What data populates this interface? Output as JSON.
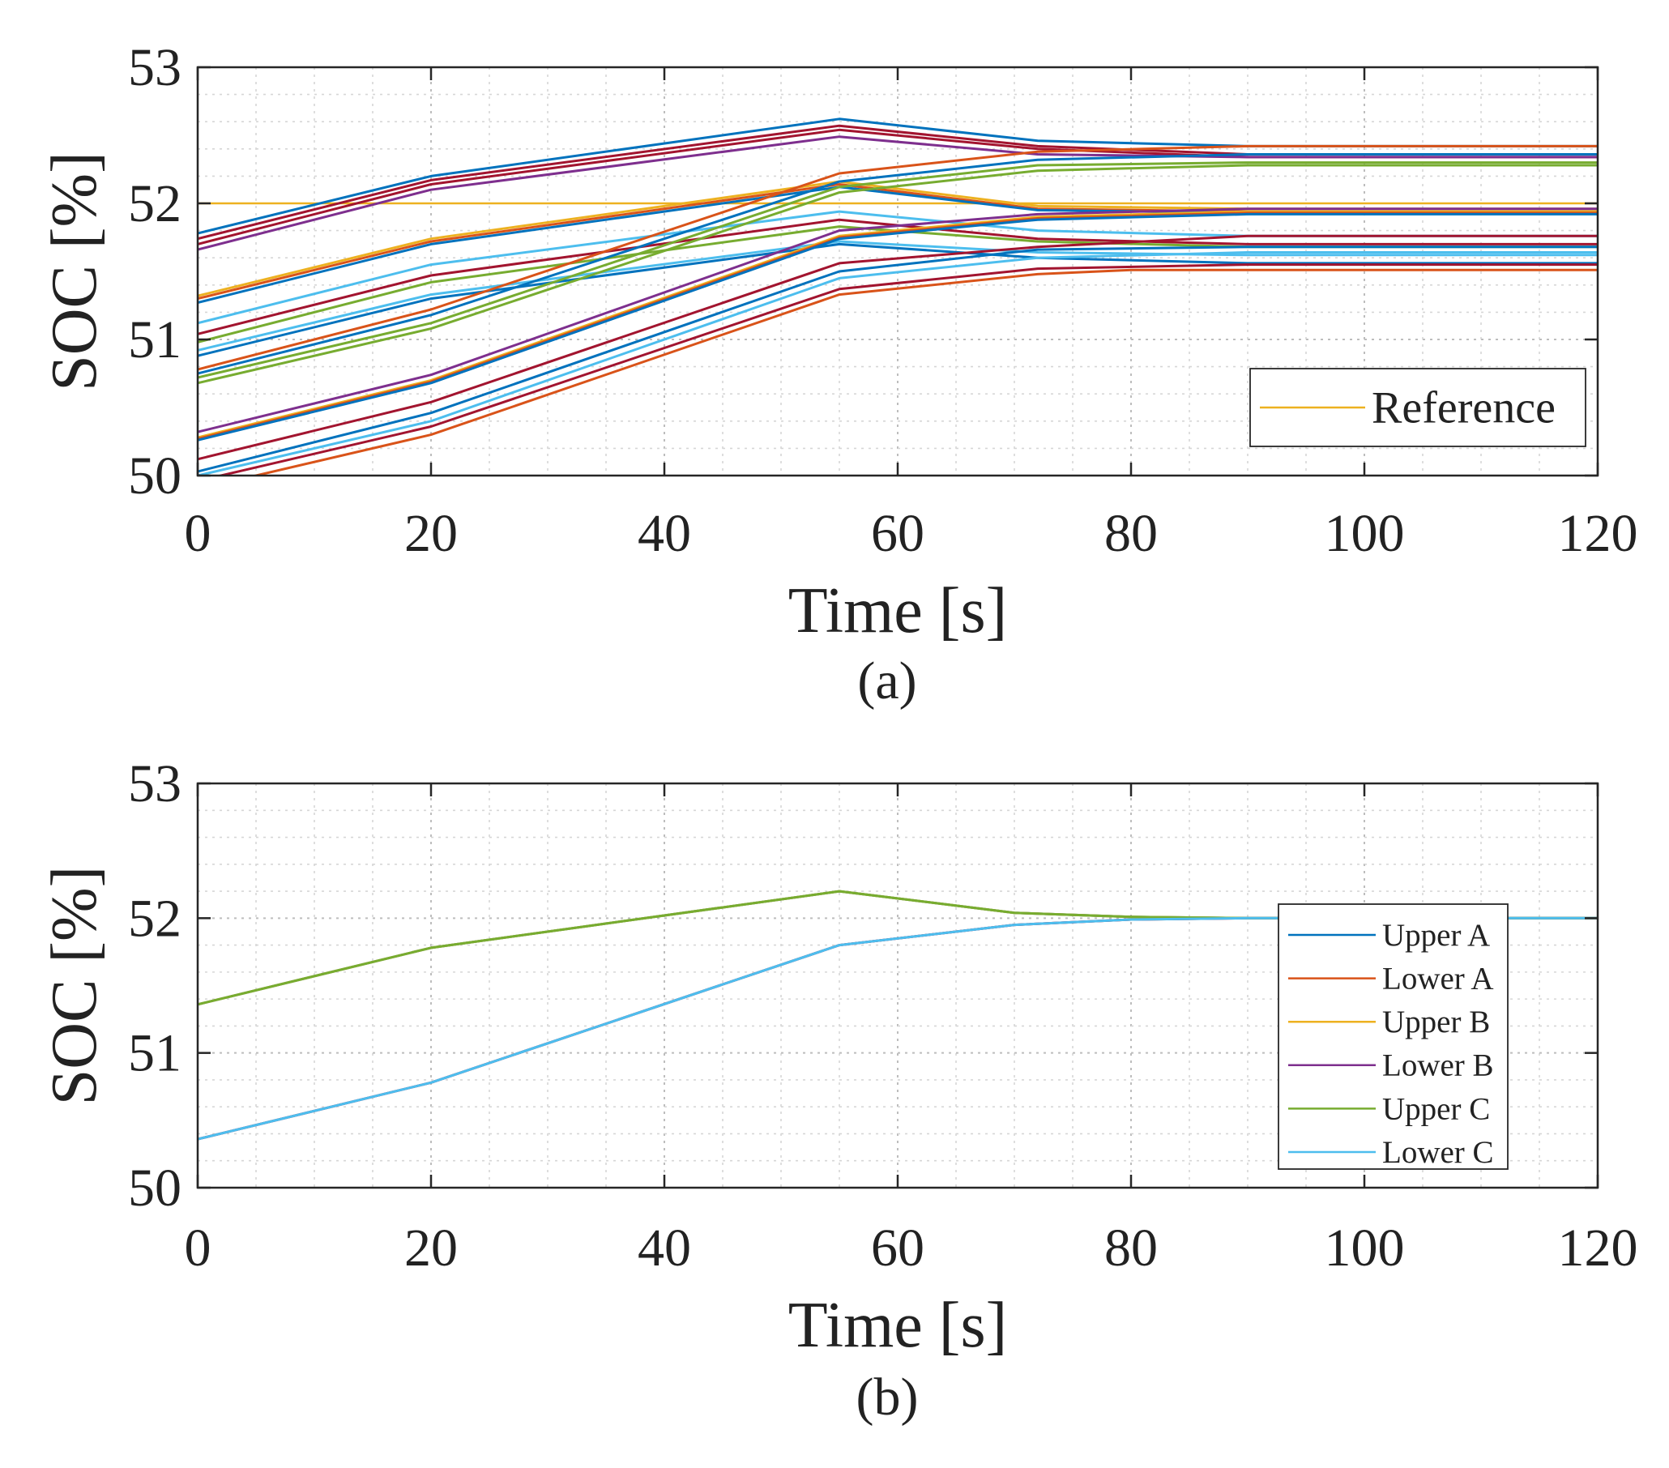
{
  "chart_data": [
    {
      "type": "line",
      "caption": "(a)",
      "title": "",
      "xlabel": "Time [s]",
      "ylabel": "SOC [%]",
      "xlim": [
        0,
        120
      ],
      "ylim": [
        50,
        53
      ],
      "xticks": [
        "0",
        "20",
        "40",
        "60",
        "80",
        "100",
        "120"
      ],
      "yticks": [
        "50",
        "51",
        "52",
        "53"
      ],
      "grid": true,
      "legend_position": "bottom-right",
      "legend": [
        "Reference"
      ],
      "series": [
        {
          "name": "Reference",
          "color": "#EDB120",
          "width": 2.5,
          "points": [
            [
              0,
              52.0
            ],
            [
              120,
              52.0
            ]
          ]
        },
        {
          "name": "",
          "color": "#0072BD",
          "points": [
            [
              0,
              51.78
            ],
            [
              20,
              52.2
            ],
            [
              55,
              52.62
            ],
            [
              72,
              52.46
            ],
            [
              90,
              52.42
            ],
            [
              120,
              52.42
            ]
          ]
        },
        {
          "name": "",
          "color": "#A2142F",
          "points": [
            [
              0,
              51.74
            ],
            [
              20,
              52.17
            ],
            [
              55,
              52.57
            ],
            [
              72,
              52.42
            ],
            [
              90,
              52.36
            ],
            [
              120,
              52.36
            ]
          ]
        },
        {
          "name": "",
          "color": "#A2142F",
          "points": [
            [
              0,
              51.7
            ],
            [
              20,
              52.14
            ],
            [
              55,
              52.54
            ],
            [
              72,
              52.4
            ],
            [
              90,
              52.34
            ],
            [
              120,
              52.34
            ]
          ]
        },
        {
          "name": "",
          "color": "#7E2F8E",
          "points": [
            [
              0,
              51.66
            ],
            [
              20,
              52.1
            ],
            [
              55,
              52.49
            ],
            [
              72,
              52.36
            ],
            [
              90,
              52.34
            ],
            [
              120,
              52.34
            ]
          ]
        },
        {
          "name": "",
          "color": "#EDB120",
          "points": [
            [
              0,
              51.32
            ],
            [
              20,
              51.74
            ],
            [
              55,
              52.16
            ],
            [
              72,
              51.98
            ],
            [
              90,
              51.96
            ],
            [
              120,
              51.96
            ]
          ]
        },
        {
          "name": "",
          "color": "#D95319",
          "points": [
            [
              0,
              51.3
            ],
            [
              20,
              51.72
            ],
            [
              55,
              52.14
            ],
            [
              72,
              51.96
            ],
            [
              90,
              51.94
            ],
            [
              120,
              51.94
            ]
          ]
        },
        {
          "name": "",
          "color": "#0072BD",
          "points": [
            [
              0,
              51.27
            ],
            [
              20,
              51.7
            ],
            [
              55,
              52.12
            ],
            [
              72,
              51.95
            ],
            [
              90,
              51.93
            ],
            [
              120,
              51.93
            ]
          ]
        },
        {
          "name": "",
          "color": "#4DBEEE",
          "points": [
            [
              0,
              51.12
            ],
            [
              20,
              51.55
            ],
            [
              55,
              51.94
            ],
            [
              72,
              51.8
            ],
            [
              90,
              51.76
            ],
            [
              120,
              51.76
            ]
          ]
        },
        {
          "name": "",
          "color": "#A2142F",
          "points": [
            [
              0,
              51.04
            ],
            [
              20,
              51.47
            ],
            [
              55,
              51.88
            ],
            [
              72,
              51.74
            ],
            [
              90,
              51.7
            ],
            [
              120,
              51.7
            ]
          ]
        },
        {
          "name": "",
          "color": "#77AC30",
          "points": [
            [
              0,
              50.98
            ],
            [
              20,
              51.42
            ],
            [
              55,
              51.83
            ],
            [
              72,
              51.72
            ],
            [
              90,
              51.68
            ],
            [
              120,
              51.68
            ]
          ]
        },
        {
          "name": "",
          "color": "#0072BD",
          "points": [
            [
              0,
              50.88
            ],
            [
              20,
              51.3
            ],
            [
              55,
              51.7
            ],
            [
              72,
              51.6
            ],
            [
              90,
              51.56
            ],
            [
              120,
              51.56
            ]
          ]
        },
        {
          "name": "",
          "color": "#4DBEEE",
          "points": [
            [
              0,
              50.92
            ],
            [
              20,
              51.33
            ],
            [
              55,
              51.72
            ],
            [
              72,
              51.64
            ],
            [
              90,
              51.62
            ],
            [
              120,
              51.62
            ]
          ]
        },
        {
          "name": "",
          "color": "#D95319",
          "points": [
            [
              0,
              50.78
            ],
            [
              20,
              51.22
            ],
            [
              55,
              52.22
            ],
            [
              72,
              52.38
            ],
            [
              90,
              52.42
            ],
            [
              120,
              52.42
            ]
          ]
        },
        {
          "name": "",
          "color": "#0072BD",
          "points": [
            [
              0,
              50.75
            ],
            [
              20,
              51.18
            ],
            [
              55,
              52.16
            ],
            [
              72,
              52.32
            ],
            [
              90,
              52.36
            ],
            [
              120,
              52.36
            ]
          ]
        },
        {
          "name": "",
          "color": "#77AC30",
          "points": [
            [
              0,
              50.72
            ],
            [
              20,
              51.12
            ],
            [
              55,
              52.12
            ],
            [
              72,
              52.28
            ],
            [
              90,
              52.3
            ],
            [
              120,
              52.3
            ]
          ]
        },
        {
          "name": "",
          "color": "#77AC30",
          "points": [
            [
              0,
              50.68
            ],
            [
              20,
              51.08
            ],
            [
              55,
              52.08
            ],
            [
              72,
              52.24
            ],
            [
              90,
              52.28
            ],
            [
              120,
              52.28
            ]
          ]
        },
        {
          "name": "",
          "color": "#7E2F8E",
          "points": [
            [
              0,
              50.32
            ],
            [
              20,
              50.74
            ],
            [
              55,
              51.8
            ],
            [
              72,
              51.92
            ],
            [
              90,
              51.96
            ],
            [
              120,
              51.96
            ]
          ]
        },
        {
          "name": "",
          "color": "#EDB120",
          "points": [
            [
              0,
              50.28
            ],
            [
              20,
              50.7
            ],
            [
              55,
              51.76
            ],
            [
              72,
              51.9
            ],
            [
              90,
              51.94
            ],
            [
              120,
              51.94
            ]
          ]
        },
        {
          "name": "",
          "color": "#D95319",
          "points": [
            [
              0,
              50.27
            ],
            [
              20,
              50.69
            ],
            [
              55,
              51.75
            ],
            [
              72,
              51.89
            ],
            [
              90,
              51.93
            ],
            [
              120,
              51.93
            ]
          ]
        },
        {
          "name": "",
          "color": "#0072BD",
          "points": [
            [
              0,
              50.26
            ],
            [
              20,
              50.68
            ],
            [
              55,
              51.74
            ],
            [
              72,
              51.88
            ],
            [
              90,
              51.92
            ],
            [
              120,
              51.92
            ]
          ]
        },
        {
          "name": "",
          "color": "#A2142F",
          "points": [
            [
              0,
              50.12
            ],
            [
              20,
              50.54
            ],
            [
              55,
              51.56
            ],
            [
              72,
              51.68
            ],
            [
              90,
              51.76
            ],
            [
              120,
              51.76
            ]
          ]
        },
        {
          "name": "",
          "color": "#0072BD",
          "points": [
            [
              0,
              50.03
            ],
            [
              20,
              50.46
            ],
            [
              55,
              51.5
            ],
            [
              72,
              51.66
            ],
            [
              90,
              51.68
            ],
            [
              120,
              51.68
            ]
          ]
        },
        {
          "name": "",
          "color": "#4DBEEE",
          "points": [
            [
              0,
              50.0
            ],
            [
              20,
              50.4
            ],
            [
              55,
              51.45
            ],
            [
              72,
              51.6
            ],
            [
              90,
              51.64
            ],
            [
              120,
              51.64
            ]
          ]
        },
        {
          "name": "",
          "color": "#A2142F",
          "points": [
            [
              0,
              49.96
            ],
            [
              20,
              50.36
            ],
            [
              55,
              51.37
            ],
            [
              72,
              51.52
            ],
            [
              90,
              51.55
            ],
            [
              120,
              51.55
            ]
          ]
        },
        {
          "name": "",
          "color": "#D95319",
          "points": [
            [
              0,
              49.9
            ],
            [
              20,
              50.3
            ],
            [
              55,
              51.33
            ],
            [
              72,
              51.48
            ],
            [
              80,
              51.51
            ],
            [
              120,
              51.51
            ]
          ]
        }
      ]
    },
    {
      "type": "line",
      "caption": "(b)",
      "title": "",
      "xlabel": "Time [s]",
      "ylabel": "SOC [%]",
      "xlim": [
        0,
        120
      ],
      "ylim": [
        50,
        53
      ],
      "xticks": [
        "0",
        "20",
        "40",
        "60",
        "80",
        "100",
        "120"
      ],
      "yticks": [
        "50",
        "51",
        "52",
        "53"
      ],
      "grid": true,
      "legend_position": "right",
      "legend": [
        "Upper A",
        "Lower A",
        "Upper B",
        "Lower B",
        "Upper C",
        "Lower C"
      ],
      "series": [
        {
          "name": "Upper A",
          "color": "#0072BD",
          "points": [
            [
              0,
              51.36
            ],
            [
              20,
              51.78
            ],
            [
              55,
              52.2
            ],
            [
              70,
              52.04
            ],
            [
              80,
              52.01
            ],
            [
              90,
              52.0
            ],
            [
              120,
              52.0
            ]
          ]
        },
        {
          "name": "Lower A",
          "color": "#D95319",
          "points": [
            [
              0,
              50.36
            ],
            [
              20,
              50.78
            ],
            [
              55,
              51.8
            ],
            [
              70,
              51.95
            ],
            [
              80,
              51.99
            ],
            [
              90,
              52.0
            ],
            [
              120,
              52.0
            ]
          ]
        },
        {
          "name": "Upper B",
          "color": "#EDB120",
          "points": [
            [
              0,
              51.36
            ],
            [
              20,
              51.78
            ],
            [
              55,
              52.2
            ],
            [
              70,
              52.04
            ],
            [
              80,
              52.01
            ],
            [
              90,
              52.0
            ],
            [
              120,
              52.0
            ]
          ]
        },
        {
          "name": "Lower B",
          "color": "#7E2F8E",
          "points": [
            [
              0,
              50.36
            ],
            [
              20,
              50.78
            ],
            [
              55,
              51.8
            ],
            [
              70,
              51.95
            ],
            [
              80,
              51.99
            ],
            [
              90,
              52.0
            ],
            [
              120,
              52.0
            ]
          ]
        },
        {
          "name": "Upper C",
          "color": "#77AC30",
          "points": [
            [
              0,
              51.36
            ],
            [
              20,
              51.78
            ],
            [
              55,
              52.2
            ],
            [
              70,
              52.04
            ],
            [
              80,
              52.01
            ],
            [
              90,
              52.0
            ],
            [
              120,
              52.0
            ]
          ]
        },
        {
          "name": "Lower C",
          "color": "#4DBEEE",
          "points": [
            [
              0,
              50.36
            ],
            [
              20,
              50.78
            ],
            [
              55,
              51.8
            ],
            [
              70,
              51.95
            ],
            [
              80,
              51.99
            ],
            [
              90,
              52.0
            ],
            [
              120,
              52.0
            ]
          ]
        }
      ]
    }
  ]
}
